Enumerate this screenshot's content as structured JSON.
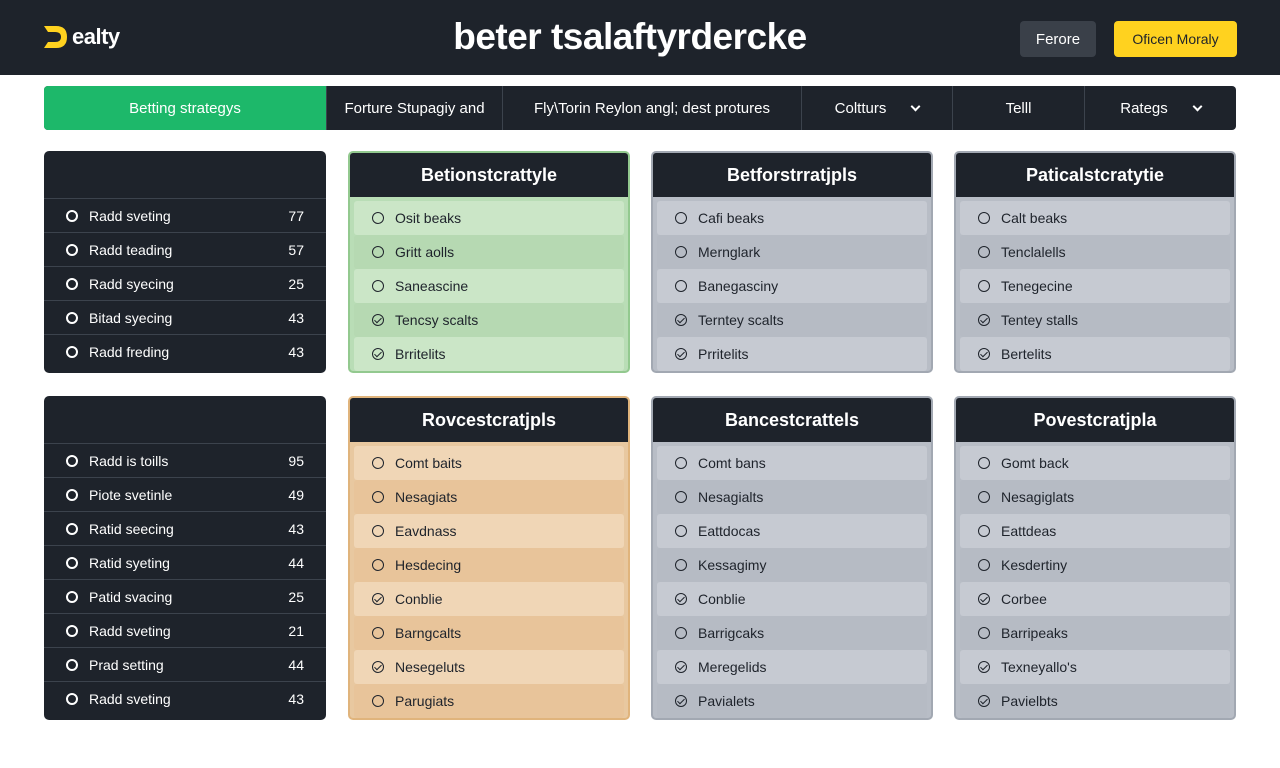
{
  "app": {
    "logo_text": "ealty",
    "title": "beter tsalaftyrdercke",
    "btn_secondary": "Ferore",
    "btn_primary": "Oficen Moraly"
  },
  "colors": {
    "topbar": "#1e232b",
    "active_tab": "#1db86a",
    "primary_button": "#ffd21f"
  },
  "nav": [
    {
      "label": "Betting strategys",
      "active": true,
      "dropdown": false
    },
    {
      "label": "Forture Stupagiy and",
      "active": false,
      "dropdown": false
    },
    {
      "label": "Fly\\Torin Reylon angl; dest protures",
      "active": false,
      "dropdown": false
    },
    {
      "label": "Coltturs",
      "active": false,
      "dropdown": true
    },
    {
      "label": "Telll",
      "active": false,
      "dropdown": false
    },
    {
      "label": "Rategs",
      "active": false,
      "dropdown": true
    }
  ],
  "left_panels": [
    {
      "rows": [
        {
          "label": "Radd sveting",
          "value": "77"
        },
        {
          "label": "Radd teading",
          "value": "57"
        },
        {
          "label": "Radd syecing",
          "value": "25"
        },
        {
          "label": "Bitad syecing",
          "value": "43"
        },
        {
          "label": "Radd freding",
          "value": "43"
        }
      ]
    },
    {
      "rows": [
        {
          "label": "Radd is toills",
          "value": "95"
        },
        {
          "label": "Piote svetinle",
          "value": "49"
        },
        {
          "label": "Ratid seecing",
          "value": "43"
        },
        {
          "label": "Ratid syeting",
          "value": "44"
        },
        {
          "label": "Patid svacing",
          "value": "25"
        },
        {
          "label": "Radd sveting",
          "value": "21"
        },
        {
          "label": "Prad setting",
          "value": "44"
        },
        {
          "label": "Radd sveting",
          "value": "43"
        }
      ]
    }
  ],
  "cards_row1": [
    {
      "title": "Betionstcrattyle",
      "theme": "green",
      "items": [
        {
          "label": "Osit beaks",
          "checked": false
        },
        {
          "label": "Gritt aolls",
          "checked": false
        },
        {
          "label": "Saneascine",
          "checked": false
        },
        {
          "label": "Tencsy scalts",
          "checked": true
        },
        {
          "label": "Brritelits",
          "checked": true
        }
      ]
    },
    {
      "title": "Betforstrratjpls",
      "theme": "grey",
      "items": [
        {
          "label": "Cafi beaks",
          "checked": false
        },
        {
          "label": "Mernglark",
          "checked": false
        },
        {
          "label": "Banegasciny",
          "checked": false
        },
        {
          "label": "Terntey scalts",
          "checked": true
        },
        {
          "label": "Prritelits",
          "checked": true
        }
      ]
    },
    {
      "title": "Paticalstcratytie",
      "theme": "grey",
      "items": [
        {
          "label": "Calt beaks",
          "checked": false
        },
        {
          "label": "Tenclalells",
          "checked": false
        },
        {
          "label": "Tenegecine",
          "checked": false
        },
        {
          "label": "Tentey stalls",
          "checked": true
        },
        {
          "label": "Bertelits",
          "checked": true
        }
      ]
    }
  ],
  "cards_row2": [
    {
      "title": "Rovcestcratjpls",
      "theme": "orange",
      "items": [
        {
          "label": "Comt baits",
          "checked": false
        },
        {
          "label": "Nesagiats",
          "checked": false
        },
        {
          "label": "Eavdnass",
          "checked": false
        },
        {
          "label": "Hesdecing",
          "checked": false
        },
        {
          "label": "Conblie",
          "checked": true
        },
        {
          "label": "Barngcalts",
          "checked": false
        },
        {
          "label": "Nesegeluts",
          "checked": true
        },
        {
          "label": "Parugiats",
          "checked": false
        }
      ]
    },
    {
      "title": "Bancestcrattels",
      "theme": "grey",
      "items": [
        {
          "label": "Comt bans",
          "checked": false
        },
        {
          "label": "Nesagialts",
          "checked": false
        },
        {
          "label": "Eattdocas",
          "checked": false
        },
        {
          "label": "Kessagimy",
          "checked": false
        },
        {
          "label": "Conblie",
          "checked": true
        },
        {
          "label": "Barrigcaks",
          "checked": false
        },
        {
          "label": "Meregelids",
          "checked": true
        },
        {
          "label": "Pavialets",
          "checked": true
        }
      ]
    },
    {
      "title": "Povestcratjpla",
      "theme": "grey",
      "items": [
        {
          "label": "Gomt back",
          "checked": false
        },
        {
          "label": "Nesagiglats",
          "checked": false
        },
        {
          "label": "Eattdeas",
          "checked": false
        },
        {
          "label": "Kesdertiny",
          "checked": false
        },
        {
          "label": "Corbee",
          "checked": true
        },
        {
          "label": "Barripeaks",
          "checked": false
        },
        {
          "label": "Texneyallo's",
          "checked": true
        },
        {
          "label": "Pavielbts",
          "checked": true
        }
      ]
    }
  ]
}
